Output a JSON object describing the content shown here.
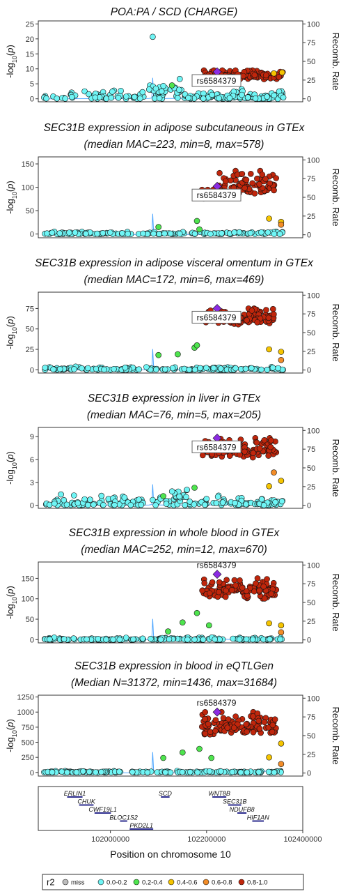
{
  "figure": {
    "x_axis": {
      "label": "Position on chromosome 10",
      "ticks": [
        102000000,
        102200000,
        102400000
      ],
      "tick_labels": [
        "102000000",
        "102200000",
        "102400000"
      ],
      "range": [
        101850000,
        102400000
      ]
    },
    "y2_label": "Recomb. Rate",
    "y2_ticks": [
      0,
      25,
      50,
      75,
      100
    ],
    "lead_snp": "rs6584379",
    "lead_pos": 102222000
  },
  "legend": {
    "title": "r2",
    "items": [
      {
        "label": "miss",
        "color": "#bdbdbd"
      },
      {
        "label": "0.0-0.2",
        "color": "#6ff5f5"
      },
      {
        "label": "0.2-0.4",
        "color": "#4ee44e"
      },
      {
        "label": "0.4-0.6",
        "color": "#f5c400"
      },
      {
        "label": "0.6-0.8",
        "color": "#f28c28"
      },
      {
        "label": "0.8-1.0",
        "color": "#c0260c"
      }
    ]
  },
  "colors": {
    "lead": "#8b2be2",
    "recomb": "#4da6ff",
    "gene": "#2a2a8c"
  },
  "genes": [
    {
      "name": "ERLIN1",
      "start": 101910000,
      "end": 101942000
    },
    {
      "name": "CHUK",
      "start": 101935000,
      "end": 101965000
    },
    {
      "name": "CWF19L1",
      "start": 101967000,
      "end": 102001000
    },
    {
      "name": "BLOC1S2",
      "start": 102020000,
      "end": 102035000
    },
    {
      "name": "PKD2L1",
      "start": 102040000,
      "end": 102089000
    },
    {
      "name": "SCD",
      "start": 102105000,
      "end": 102123000
    },
    {
      "name": "WNT8B",
      "start": 102212000,
      "end": 102241000
    },
    {
      "name": "SEC31B",
      "start": 102245000,
      "end": 102272000
    },
    {
      "name": "NDUFB8",
      "start": 102264000,
      "end": 102283000
    },
    {
      "name": "HIF1AN",
      "start": 102295000,
      "end": 102319000
    }
  ],
  "chart_data": [
    {
      "type": "scatter",
      "title": "POA:PA / SCD (CHARGE)",
      "subtitle": "",
      "ylabel": "-log10(p)",
      "ylim": [
        -1,
        26
      ],
      "yticks": [
        0,
        5,
        10,
        15,
        20,
        25
      ],
      "lead_value": 9,
      "label_style": "box",
      "bands": [
        {
          "r2": "0.0-0.2",
          "x0": 101860000,
          "x1": 102360000,
          "ymin": 0,
          "ymax": 4,
          "n": 130
        },
        {
          "r2": "0.0-0.2",
          "x0": 102080000,
          "x1": 102150000,
          "ymin": 2,
          "ymax": 7,
          "n": 25
        },
        {
          "r2": "0.0-0.2",
          "x0": 102160000,
          "x1": 102360000,
          "ymin": 0,
          "ymax": 2,
          "n": 40
        },
        {
          "r2": "0.8-1.0",
          "x0": 102190000,
          "x1": 102360000,
          "ymin": 6.5,
          "ymax": 9.5,
          "n": 110
        }
      ],
      "points": [
        {
          "x": 102088000,
          "y": 20.7,
          "r2": "0.0-0.2"
        },
        {
          "x": 102128000,
          "y": 4.5,
          "r2": "0.2-0.4"
        },
        {
          "x": 102340000,
          "y": 8.5,
          "r2": "0.4-0.6"
        },
        {
          "x": 102357000,
          "y": 8.8,
          "r2": "0.4-0.6"
        }
      ]
    },
    {
      "type": "scatter",
      "title": "SEC31B expression in adipose subcutaneous in GTEx",
      "subtitle": "(median MAC=223, min=8, max=578)",
      "ylabel": "-log10(p)",
      "ylim": [
        -8,
        165
      ],
      "yticks": [
        0,
        50,
        100,
        150
      ],
      "lead_value": 102,
      "label_style": "box",
      "bands": [
        {
          "r2": "0.0-0.2",
          "x0": 101860000,
          "x1": 102360000,
          "ymin": 0,
          "ymax": 6,
          "n": 160
        },
        {
          "r2": "0.8-1.0",
          "x0": 102190000,
          "x1": 102230000,
          "ymin": 75,
          "ymax": 95,
          "n": 35
        },
        {
          "r2": "0.8-1.0",
          "x0": 102225000,
          "x1": 102345000,
          "ymin": 85,
          "ymax": 135,
          "n": 80
        }
      ],
      "points": [
        {
          "x": 102100000,
          "y": 15,
          "r2": "0.2-0.4"
        },
        {
          "x": 102180000,
          "y": 28,
          "r2": "0.2-0.4"
        },
        {
          "x": 102185000,
          "y": 10,
          "r2": "0.2-0.4"
        },
        {
          "x": 102330000,
          "y": 33,
          "r2": "0.4-0.6"
        },
        {
          "x": 102355000,
          "y": 26,
          "r2": "0.4-0.6"
        },
        {
          "x": 102355000,
          "y": 20,
          "r2": "0.6-0.8"
        }
      ]
    },
    {
      "type": "scatter",
      "title": "SEC31B expression in adipose visceral omentum in GTEx",
      "subtitle": "(median MAC=172, min=6, max=469)",
      "ylabel": "-log10(p)",
      "ylim": [
        -4,
        95
      ],
      "yticks": [
        0,
        25,
        50,
        75
      ],
      "lead_value": 75,
      "label_style": "box",
      "bands": [
        {
          "r2": "0.0-0.2",
          "x0": 101860000,
          "x1": 102360000,
          "ymin": 0,
          "ymax": 4,
          "n": 160
        },
        {
          "r2": "0.8-1.0",
          "x0": 102190000,
          "x1": 102345000,
          "ymin": 55,
          "ymax": 75,
          "n": 110
        }
      ],
      "points": [
        {
          "x": 102100000,
          "y": 18,
          "r2": "0.2-0.4"
        },
        {
          "x": 102140000,
          "y": 19,
          "r2": "0.2-0.4"
        },
        {
          "x": 102175000,
          "y": 27,
          "r2": "0.2-0.4"
        },
        {
          "x": 102180000,
          "y": 30,
          "r2": "0.2-0.4"
        },
        {
          "x": 102330000,
          "y": 25,
          "r2": "0.4-0.6"
        },
        {
          "x": 102355000,
          "y": 22,
          "r2": "0.4-0.6"
        },
        {
          "x": 102355000,
          "y": 12,
          "r2": "0.6-0.8"
        }
      ]
    },
    {
      "type": "scatter",
      "title": "SEC31B expression in liver in GTEx",
      "subtitle": "(median MAC=76, min=5, max=205)",
      "ylabel": "-log10(p)",
      "ylim": [
        -0.4,
        10.2
      ],
      "yticks": [
        0,
        3,
        6,
        9
      ],
      "lead_value": 8.8,
      "label_style": "box",
      "bands": [
        {
          "r2": "0.0-0.2",
          "x0": 101860000,
          "x1": 102360000,
          "ymin": 0,
          "ymax": 1.6,
          "n": 160
        },
        {
          "r2": "0.0-0.2",
          "x0": 102120000,
          "x1": 102160000,
          "ymin": 1,
          "ymax": 2.6,
          "n": 15
        },
        {
          "r2": "0.8-1.0",
          "x0": 102190000,
          "x1": 102345000,
          "ymin": 6.2,
          "ymax": 8.8,
          "n": 110
        }
      ],
      "points": [
        {
          "x": 102110000,
          "y": 1.2,
          "r2": "0.2-0.4"
        },
        {
          "x": 102175000,
          "y": 2.3,
          "r2": "0.2-0.4"
        },
        {
          "x": 102330000,
          "y": 2.5,
          "r2": "0.4-0.6"
        },
        {
          "x": 102355000,
          "y": 3.2,
          "r2": "0.4-0.6"
        },
        {
          "x": 102340000,
          "y": 4.3,
          "r2": "0.6-0.8"
        }
      ]
    },
    {
      "type": "scatter",
      "title": "SEC31B expression in whole blood in GTEx",
      "subtitle": "(median MAC=252, min=12, max=670)",
      "ylabel": "-log10(p)",
      "ylim": [
        -8,
        190
      ],
      "yticks": [
        0,
        50,
        100,
        150
      ],
      "lead_value": 160,
      "label_style": "plain",
      "bands": [
        {
          "r2": "0.0-0.2",
          "x0": 101860000,
          "x1": 102360000,
          "ymin": 0,
          "ymax": 6,
          "n": 160
        },
        {
          "r2": "0.8-1.0",
          "x0": 102190000,
          "x1": 102345000,
          "ymin": 100,
          "ymax": 150,
          "n": 110
        }
      ],
      "points": [
        {
          "x": 102120000,
          "y": 20,
          "r2": "0.2-0.4"
        },
        {
          "x": 102150000,
          "y": 42,
          "r2": "0.2-0.4"
        },
        {
          "x": 102180000,
          "y": 65,
          "r2": "0.2-0.4"
        },
        {
          "x": 102205000,
          "y": 35,
          "r2": "0.2-0.4"
        },
        {
          "x": 102330000,
          "y": 40,
          "r2": "0.4-0.6"
        },
        {
          "x": 102355000,
          "y": 35,
          "r2": "0.4-0.6"
        },
        {
          "x": 102355000,
          "y": 18,
          "r2": "0.6-0.8"
        }
      ]
    },
    {
      "type": "scatter",
      "title": "SEC31B expression in blood in eQTLGen",
      "subtitle": "(Median N=31372, min=1436, max=31684)",
      "ylabel": "-log10(p)",
      "ylim": [
        -60,
        1280
      ],
      "yticks": [
        0,
        250,
        500,
        750,
        1000,
        1250
      ],
      "lead_value": 1000,
      "label_style": "plain",
      "bands": [
        {
          "r2": "0.0-0.2",
          "x0": 101860000,
          "x1": 102360000,
          "ymin": 0,
          "ymax": 30,
          "n": 160
        },
        {
          "r2": "0.8-1.0",
          "x0": 102190000,
          "x1": 102345000,
          "ymin": 620,
          "ymax": 1000,
          "n": 110
        }
      ],
      "points": [
        {
          "x": 102110000,
          "y": 240,
          "r2": "0.2-0.4"
        },
        {
          "x": 102150000,
          "y": 330,
          "r2": "0.2-0.4"
        },
        {
          "x": 102185000,
          "y": 390,
          "r2": "0.2-0.4"
        },
        {
          "x": 102210000,
          "y": 240,
          "r2": "0.2-0.4"
        },
        {
          "x": 102330000,
          "y": 250,
          "r2": "0.4-0.6"
        },
        {
          "x": 102355000,
          "y": 480,
          "r2": "0.4-0.6"
        },
        {
          "x": 102355000,
          "y": 140,
          "r2": "0.6-0.8"
        }
      ]
    }
  ]
}
